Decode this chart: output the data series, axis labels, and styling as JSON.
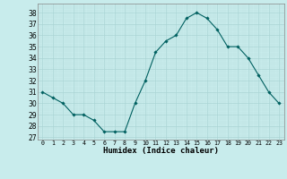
{
  "x": [
    0,
    1,
    2,
    3,
    4,
    5,
    6,
    7,
    8,
    9,
    10,
    11,
    12,
    13,
    14,
    15,
    16,
    17,
    18,
    19,
    20,
    21,
    22,
    23
  ],
  "y": [
    31,
    30.5,
    30,
    29,
    29,
    28.5,
    27.5,
    27.5,
    27.5,
    30,
    32,
    34.5,
    35.5,
    36,
    37.5,
    38,
    37.5,
    36.5,
    35,
    35,
    34,
    32.5,
    31,
    30
  ],
  "line_color": "#006060",
  "marker": "D",
  "marker_size": 1.8,
  "bg_color": "#c8ecec",
  "grid_major_color": "#aad4d4",
  "grid_minor_color": "#bce0e0",
  "xlabel": "Humidex (Indice chaleur)",
  "xlabel_fontsize": 6.5,
  "ylabel_ticks": [
    27,
    28,
    29,
    30,
    31,
    32,
    33,
    34,
    35,
    36,
    37,
    38
  ],
  "ytick_fontsize": 5.5,
  "xtick_fontsize": 4.8,
  "ylim": [
    26.8,
    38.8
  ],
  "xlim": [
    -0.5,
    23.5
  ],
  "linewidth": 0.8
}
